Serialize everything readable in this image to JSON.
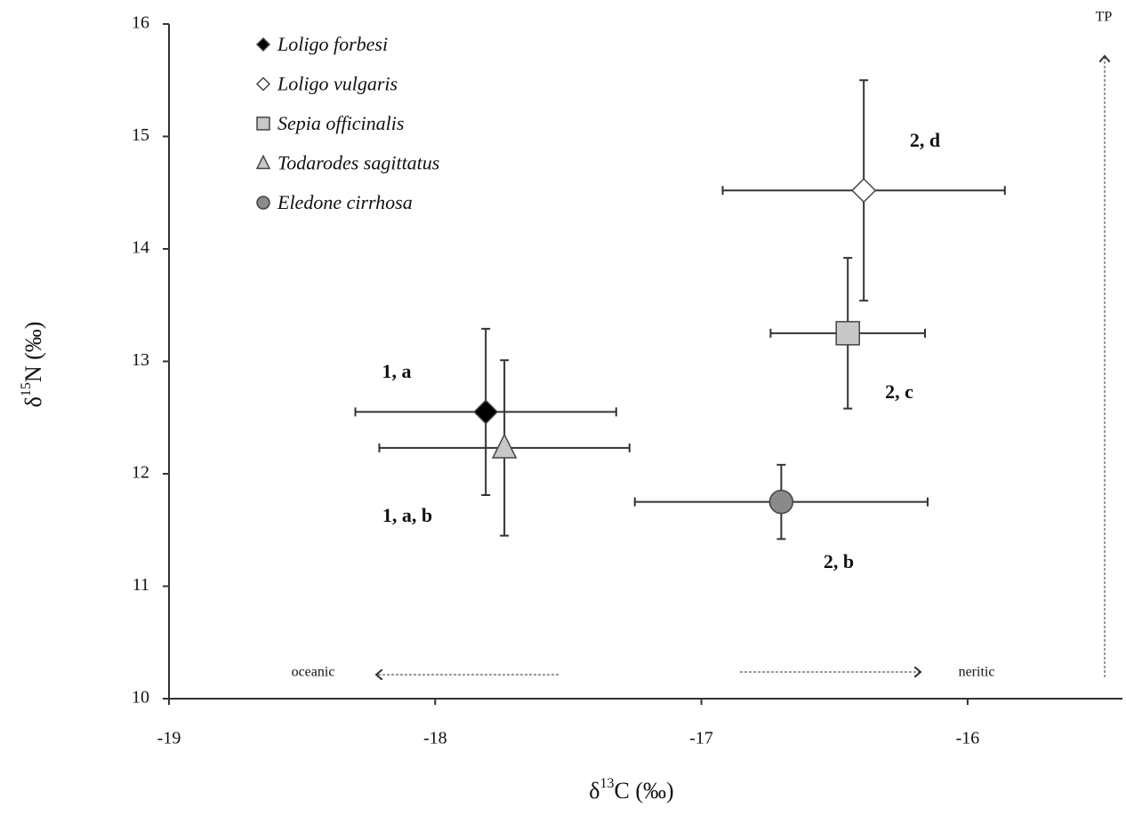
{
  "chart_data": {
    "type": "scatter",
    "x_label": {
      "symbol": "δ",
      "sup": "13",
      "rest": "C (‰)"
    },
    "y_label": {
      "symbol": "δ",
      "sup": "15",
      "rest": "N (‰)"
    },
    "xlim": [
      -19,
      -15.4
    ],
    "ylim": [
      10,
      16
    ],
    "xticks": [
      -19,
      -18,
      -17,
      -16
    ],
    "yticks": [
      10,
      11,
      12,
      13,
      14,
      15,
      16
    ],
    "legend": "upper left",
    "series": [
      {
        "name": "Loligo forbesi",
        "marker": "diamond",
        "color": "#000000",
        "x": [
          -17.81
        ],
        "y": [
          12.55
        ],
        "xerr": [
          0.49
        ],
        "yerr": [
          0.74
        ]
      },
      {
        "name": "Loligo vulgaris",
        "marker": "diamond",
        "color": "#ffffff",
        "x": [
          -16.39
        ],
        "y": [
          14.52
        ],
        "xerr": [
          0.53
        ],
        "yerr": [
          0.98
        ]
      },
      {
        "name": "Sepia officinalis",
        "marker": "square",
        "color": "#c8c8c8",
        "x": [
          -16.45
        ],
        "y": [
          13.25
        ],
        "xerr": [
          0.29
        ],
        "yerr": [
          0.67
        ]
      },
      {
        "name": "Todarodes sagittatus",
        "marker": "triangle",
        "color": "#c8c8c8",
        "x": [
          -17.74
        ],
        "y": [
          12.23
        ],
        "xerr": [
          0.47
        ],
        "yerr": [
          0.78
        ]
      },
      {
        "name": "Eledone cirrhosa",
        "marker": "circle",
        "color": "#8a8a8a",
        "x": [
          -16.7
        ],
        "y": [
          11.75
        ],
        "xerr": [
          0.55
        ],
        "yerr": [
          0.33
        ]
      }
    ],
    "annotations": [
      "2, d",
      "2, c",
      "1, a",
      "1, a, b",
      "2, b"
    ],
    "direction_labels": {
      "left": "oceanic",
      "right": "neritic",
      "up": "TP"
    }
  }
}
